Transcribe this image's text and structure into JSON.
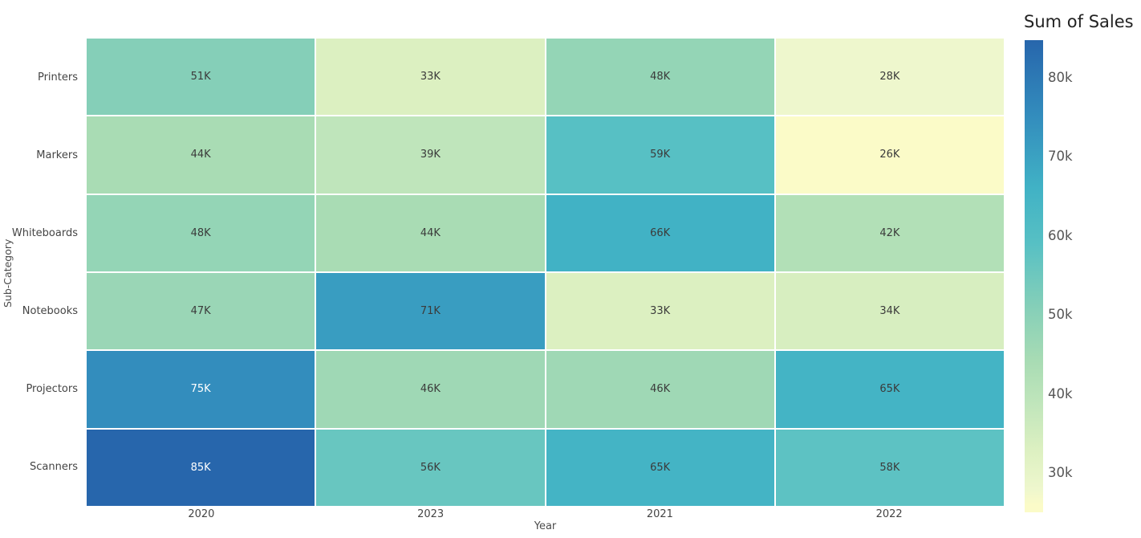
{
  "chart_data": {
    "type": "heatmap",
    "legend_title": "Sum of Sales",
    "xlabel": "Year",
    "ylabel": "Sub-Category",
    "x_categories": [
      "2020",
      "2023",
      "2021",
      "2022"
    ],
    "y_categories": [
      "Printers",
      "Markers",
      "Whiteboards",
      "Notebooks",
      "Projectors",
      "Scanners"
    ],
    "values": [
      [
        51,
        33,
        48,
        28
      ],
      [
        44,
        39,
        59,
        26
      ],
      [
        48,
        44,
        66,
        42
      ],
      [
        47,
        71,
        33,
        34
      ],
      [
        75,
        46,
        46,
        65
      ],
      [
        85,
        56,
        65,
        58
      ]
    ],
    "cell_labels": [
      [
        "51K",
        "33K",
        "48K",
        "28K"
      ],
      [
        "44K",
        "39K",
        "59K",
        "26K"
      ],
      [
        "48K",
        "44K",
        "66K",
        "42K"
      ],
      [
        "47K",
        "71K",
        "33K",
        "34K"
      ],
      [
        "75K",
        "46K",
        "46K",
        "65K"
      ],
      [
        "85K",
        "56K",
        "65K",
        "58K"
      ]
    ],
    "zmin": 26,
    "zmax": 85,
    "colorbar_ticks": [
      {
        "label": "80k",
        "value": 80
      },
      {
        "label": "70k",
        "value": 70
      },
      {
        "label": "60k",
        "value": 60
      },
      {
        "label": "50k",
        "value": 50
      },
      {
        "label": "40k",
        "value": 40
      },
      {
        "label": "30k",
        "value": 30
      }
    ],
    "colorscale": [
      {
        "value": 26,
        "color": "#fbfbc8"
      },
      {
        "value": 28,
        "color": "#eef7cd"
      },
      {
        "value": 33,
        "color": "#dcf0c1"
      },
      {
        "value": 39,
        "color": "#bfe5bb"
      },
      {
        "value": 44,
        "color": "#a9dcb4"
      },
      {
        "value": 51,
        "color": "#85cfb8"
      },
      {
        "value": 59,
        "color": "#57c0c4"
      },
      {
        "value": 66,
        "color": "#41b2c5"
      },
      {
        "value": 75,
        "color": "#338dbd"
      },
      {
        "value": 85,
        "color": "#2766ac"
      }
    ],
    "label_dark_color": "#3b3b3b",
    "label_light_color": "#ffffff",
    "grid": false,
    "legend_position": "right"
  }
}
